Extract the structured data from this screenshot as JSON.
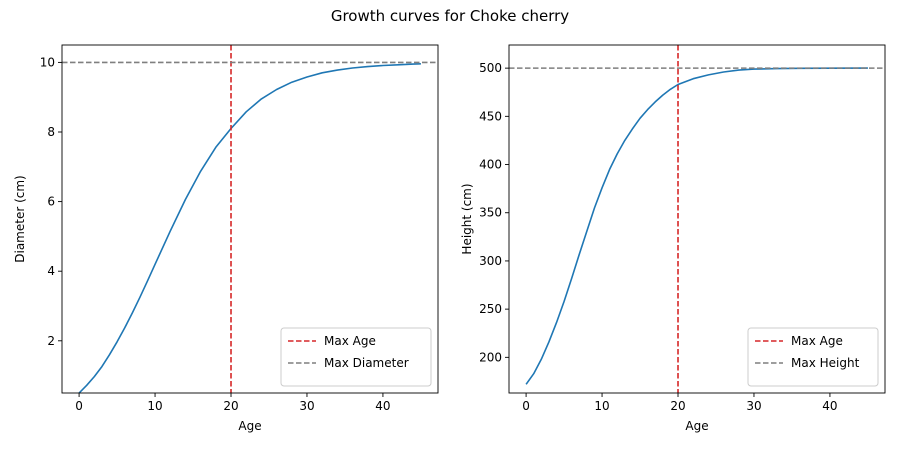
{
  "figure": {
    "suptitle": "Growth curves for Choke cherry"
  },
  "chart_data": [
    {
      "type": "line",
      "title": "",
      "xlabel": "Age",
      "ylabel": "Diameter (cm)",
      "xlim": [
        -2.25,
        47.25
      ],
      "ylim": [
        0.5,
        10.5
      ],
      "xticks": [
        0,
        10,
        20,
        30,
        40
      ],
      "yticks": [
        2,
        4,
        6,
        8,
        10
      ],
      "grid": false,
      "legend_position": "lower-right",
      "series": [
        {
          "name": "",
          "color": "#1f77b4",
          "style": "solid",
          "x": [
            0,
            1,
            2,
            3,
            4,
            5,
            6,
            7,
            8,
            9,
            10,
            12,
            14,
            16,
            18,
            20,
            22,
            24,
            26,
            28,
            30,
            32,
            34,
            36,
            38,
            40,
            42,
            44,
            45
          ],
          "y": [
            0.5,
            0.72,
            0.97,
            1.26,
            1.6,
            1.97,
            2.37,
            2.8,
            3.25,
            3.72,
            4.2,
            5.15,
            6.06,
            6.87,
            7.56,
            8.1,
            8.58,
            8.95,
            9.22,
            9.43,
            9.58,
            9.7,
            9.78,
            9.84,
            9.88,
            9.91,
            9.93,
            9.95,
            9.96
          ]
        },
        {
          "name": "Max Age",
          "color": "#d62728",
          "style": "dashed",
          "vline": 20
        },
        {
          "name": "Max Diameter",
          "color": "#7f7f7f",
          "style": "dashed",
          "hline": 10
        }
      ]
    },
    {
      "type": "line",
      "title": "",
      "xlabel": "Age",
      "ylabel": "Height (cm)",
      "xlim": [
        -2.25,
        47.25
      ],
      "ylim": [
        163,
        524
      ],
      "xticks": [
        0,
        10,
        20,
        30,
        40
      ],
      "yticks": [
        200,
        250,
        300,
        350,
        400,
        450,
        500
      ],
      "grid": false,
      "legend_position": "lower-right",
      "series": [
        {
          "name": "",
          "color": "#1f77b4",
          "style": "solid",
          "x": [
            0,
            1,
            2,
            3,
            4,
            5,
            6,
            7,
            8,
            9,
            10,
            11,
            12,
            13,
            14,
            15,
            16,
            17,
            18,
            19,
            20,
            22,
            24,
            26,
            28,
            30,
            33,
            36,
            40,
            45
          ],
          "y": [
            172,
            183,
            198,
            216,
            236,
            258,
            282,
            307,
            331,
            355,
            376,
            395,
            411,
            425,
            437,
            448,
            457,
            465,
            472,
            478,
            483,
            489,
            493,
            496,
            498,
            499,
            499.5,
            499.8,
            499.9,
            500
          ]
        },
        {
          "name": "Max Age",
          "color": "#d62728",
          "style": "dashed",
          "vline": 20
        },
        {
          "name": "Max Height",
          "color": "#7f7f7f",
          "style": "dashed",
          "hline": 500
        }
      ]
    }
  ]
}
